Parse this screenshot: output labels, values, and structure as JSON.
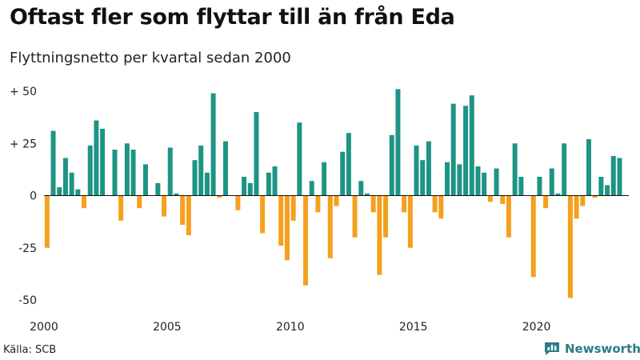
{
  "title": "Oftast fler som flyttar till än från Eda",
  "subtitle": "Flyttningsnetto per kvartal sedan 2000",
  "source": "Källa: SCB",
  "brand": "Newsworthy",
  "colors": {
    "positive": "#1e9484",
    "negative": "#f5a01e",
    "brand": "#2b7d85"
  },
  "chart_data": {
    "type": "bar",
    "title": "Oftast fler som flyttar till än från Eda",
    "subtitle": "Flyttningsnetto per kvartal sedan 2000",
    "xlabel": "",
    "ylabel": "",
    "ylim": [
      -50,
      50
    ],
    "grid": false,
    "x_start": 2000,
    "x_end": 2023.75,
    "x_ticks": [
      {
        "value": 2000,
        "label": "2000"
      },
      {
        "value": 2005,
        "label": "2005"
      },
      {
        "value": 2010,
        "label": "2010"
      },
      {
        "value": 2015,
        "label": "2015"
      },
      {
        "value": 2020,
        "label": "2020"
      }
    ],
    "y_ticks": [
      {
        "value": 50,
        "label": "+ 50"
      },
      {
        "value": 25,
        "label": "+ 25"
      },
      {
        "value": 0,
        "label": "0"
      },
      {
        "value": -25,
        "label": "-25"
      },
      {
        "value": -50,
        "label": "-50"
      }
    ],
    "categories": [
      "2000K1",
      "2000K2",
      "2000K3",
      "2000K4",
      "2001K1",
      "2001K2",
      "2001K3",
      "2001K4",
      "2002K1",
      "2002K2",
      "2002K3",
      "2002K4",
      "2003K1",
      "2003K2",
      "2003K3",
      "2003K4",
      "2004K1",
      "2004K2",
      "2004K3",
      "2004K4",
      "2005K1",
      "2005K2",
      "2005K3",
      "2005K4",
      "2006K1",
      "2006K2",
      "2006K3",
      "2006K4",
      "2007K1",
      "2007K2",
      "2007K3",
      "2007K4",
      "2008K1",
      "2008K2",
      "2008K3",
      "2008K4",
      "2009K1",
      "2009K2",
      "2009K3",
      "2009K4",
      "2010K1",
      "2010K2",
      "2010K3",
      "2010K4",
      "2011K1",
      "2011K2",
      "2011K3",
      "2011K4",
      "2012K1",
      "2012K2",
      "2012K3",
      "2012K4",
      "2013K1",
      "2013K2",
      "2013K3",
      "2013K4",
      "2014K1",
      "2014K2",
      "2014K3",
      "2014K4",
      "2015K1",
      "2015K2",
      "2015K3",
      "2015K4",
      "2016K1",
      "2016K2",
      "2016K3",
      "2016K4",
      "2017K1",
      "2017K2",
      "2017K3",
      "2017K4",
      "2018K1",
      "2018K2",
      "2018K3",
      "2018K4",
      "2019K1",
      "2019K2",
      "2019K3",
      "2019K4",
      "2020K1",
      "2020K2",
      "2020K3",
      "2020K4",
      "2021K1",
      "2021K2",
      "2021K3",
      "2021K4",
      "2022K1",
      "2022K2",
      "2022K3",
      "2022K4",
      "2023K1",
      "2023K2",
      "2023K3",
      "2023K4"
    ],
    "values": [
      -25,
      31,
      4,
      18,
      11,
      3,
      -6,
      24,
      36,
      32,
      0,
      22,
      -12,
      25,
      22,
      -6,
      15,
      0,
      6,
      -10,
      23,
      1,
      -14,
      -19,
      17,
      24,
      11,
      49,
      -1,
      26,
      0,
      -7,
      9,
      6,
      40,
      -18,
      11,
      14,
      -24,
      -31,
      -12,
      35,
      -43,
      7,
      -8,
      16,
      -30,
      -5,
      21,
      30,
      -20,
      7,
      1,
      -8,
      -38,
      -20,
      29,
      51,
      -8,
      -25,
      24,
      17,
      26,
      -8,
      -11,
      16,
      44,
      15,
      43,
      48,
      14,
      11,
      -3,
      13,
      -4,
      -20,
      25,
      9,
      0,
      -39,
      9,
      -6,
      13,
      1,
      25,
      -49,
      -11,
      -5,
      27,
      -1,
      9,
      5,
      19,
      18,
      0,
      0
    ]
  }
}
